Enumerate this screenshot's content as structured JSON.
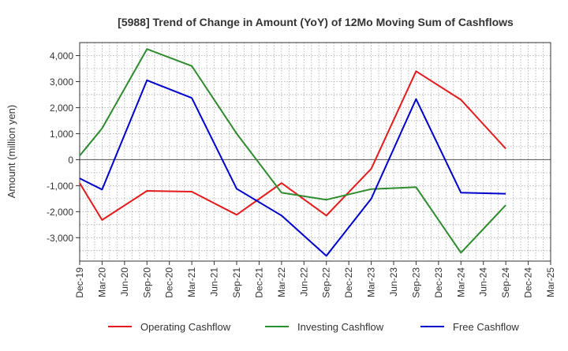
{
  "chart_data": {
    "type": "line",
    "title": "[5988]  Trend of Change in Amount (YoY) of 12Mo Moving Sum of Cashflows",
    "xlabel": "",
    "ylabel": "Amount (million yen)",
    "ylim": [
      -3900,
      4500
    ],
    "yticks": [
      4000,
      3000,
      2000,
      1000,
      0,
      -1000,
      -2000,
      -3000
    ],
    "ytick_labels": [
      "4,000",
      "3,000",
      "2,000",
      "1,000",
      "0",
      "-1,000",
      "-2,000",
      "-3,000"
    ],
    "categories": [
      "Dec-19",
      "Mar-20",
      "Jun-20",
      "Sep-20",
      "Dec-20",
      "Mar-21",
      "Jun-21",
      "Sep-21",
      "Dec-21",
      "Mar-22",
      "Jun-22",
      "Sep-22",
      "Dec-22",
      "Mar-23",
      "Jun-23",
      "Sep-23",
      "Dec-23",
      "Mar-24",
      "Jun-24",
      "Sep-24",
      "Dec-24",
      "Mar-25"
    ],
    "series": [
      {
        "name": "Operating Cashflow",
        "color": "#e41a1c",
        "values": [
          -900,
          -2320,
          null,
          -1200,
          null,
          -1230,
          null,
          -2120,
          null,
          -900,
          null,
          -2150,
          null,
          -350,
          null,
          3400,
          null,
          2300,
          null,
          420,
          null,
          null
        ]
      },
      {
        "name": "Investing Cashflow",
        "color": "#2e8b2e",
        "values": [
          150,
          1200,
          null,
          4250,
          null,
          3600,
          null,
          1000,
          null,
          -1270,
          null,
          -1540,
          null,
          -1130,
          null,
          -1060,
          null,
          -3580,
          null,
          -1750,
          null,
          null
        ]
      },
      {
        "name": "Free Cashflow",
        "color": "#0000cc",
        "values": [
          -720,
          -1150,
          null,
          3050,
          null,
          2370,
          null,
          -1120,
          null,
          -2150,
          null,
          -3700,
          null,
          -1500,
          null,
          2330,
          null,
          -1270,
          null,
          -1310,
          null,
          null
        ]
      }
    ],
    "legend_position": "bottom",
    "grid": true
  }
}
